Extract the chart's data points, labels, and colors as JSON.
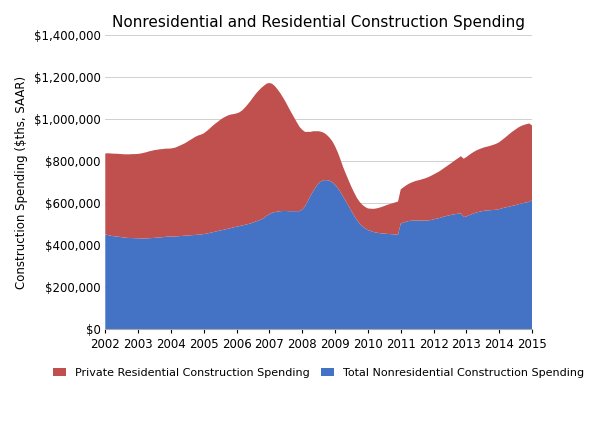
{
  "title": "Nonresidential and Residential Construction Spending",
  "ylabel": "Construction Spending ($ths, SAAR)",
  "nonres_color": "#4472C4",
  "res_color": "#C0504D",
  "background_color": "#FFFFFF",
  "ylim": [
    0,
    1400000
  ],
  "ytick_step": 200000,
  "legend_labels": [
    "Private Residential Construction Spending",
    "Total Nonresidential Construction Spending"
  ],
  "title_fontsize": 11,
  "axis_fontsize": 8.5,
  "legend_fontsize": 8,
  "xtick_years": [
    2002,
    2003,
    2004,
    2005,
    2006,
    2007,
    2008,
    2009,
    2010,
    2011,
    2012,
    2013,
    2014,
    2015
  ],
  "nonresidential": [
    452000,
    448000,
    445000,
    443000,
    441000,
    440000,
    438000,
    436000,
    435000,
    434000,
    434000,
    433000,
    433000,
    432000,
    432000,
    432000,
    433000,
    434000,
    435000,
    436000,
    437000,
    438000,
    440000,
    441000,
    441000,
    441000,
    442000,
    443000,
    444000,
    445000,
    446000,
    447000,
    448000,
    449000,
    450000,
    451000,
    453000,
    455000,
    458000,
    461000,
    464000,
    467000,
    470000,
    473000,
    476000,
    479000,
    482000,
    485000,
    488000,
    491000,
    494000,
    497000,
    500000,
    503000,
    508000,
    513000,
    518000,
    523000,
    530000,
    540000,
    548000,
    554000,
    558000,
    560000,
    562000,
    563000,
    563000,
    562000,
    562000,
    562000,
    562000,
    562000,
    570000,
    585000,
    610000,
    635000,
    658000,
    678000,
    695000,
    705000,
    710000,
    710000,
    707000,
    700000,
    688000,
    672000,
    652000,
    630000,
    608000,
    585000,
    562000,
    540000,
    520000,
    503000,
    490000,
    480000,
    472000,
    468000,
    463000,
    460000,
    458000,
    456000,
    455000,
    454000,
    453000,
    452000,
    451000,
    450000,
    503000,
    508000,
    512000,
    515000,
    517000,
    518000,
    518000,
    517000,
    517000,
    517000,
    518000,
    520000,
    523000,
    526000,
    529000,
    533000,
    537000,
    540000,
    543000,
    546000,
    548000,
    550000,
    552000,
    534000,
    537000,
    543000,
    548000,
    553000,
    557000,
    560000,
    563000,
    565000,
    566000,
    567000,
    568000,
    569000,
    572000,
    576000,
    579000,
    582000,
    585000,
    588000,
    591000,
    595000,
    598000,
    601000,
    604000,
    607000,
    615000,
    620000,
    622000,
    624000,
    625000,
    626000,
    627000,
    628000,
    628000,
    628000,
    628000,
    628000
  ],
  "residential": [
    385000,
    390000,
    392000,
    393000,
    395000,
    395000,
    396000,
    397000,
    398000,
    399000,
    400000,
    401000,
    402000,
    405000,
    408000,
    411000,
    414000,
    416000,
    418000,
    419000,
    420000,
    420000,
    420000,
    419000,
    420000,
    422000,
    425000,
    430000,
    435000,
    440000,
    447000,
    454000,
    461000,
    468000,
    473000,
    476000,
    480000,
    488000,
    496000,
    505000,
    513000,
    520000,
    527000,
    533000,
    537000,
    540000,
    541000,
    540000,
    540000,
    542000,
    548000,
    558000,
    570000,
    583000,
    596000,
    608000,
    618000,
    626000,
    630000,
    630000,
    625000,
    615000,
    600000,
    582000,
    562000,
    540000,
    518000,
    494000,
    470000,
    447000,
    424000,
    402000,
    380000,
    355000,
    330000,
    305000,
    285000,
    265000,
    248000,
    235000,
    225000,
    215000,
    205000,
    195000,
    183000,
    170000,
    155000,
    140000,
    130000,
    122000,
    115000,
    110000,
    105000,
    103000,
    102000,
    102000,
    103000,
    106000,
    110000,
    115000,
    120000,
    126000,
    132000,
    138000,
    143000,
    148000,
    153000,
    158000,
    163000,
    168000,
    173000,
    178000,
    182000,
    186000,
    190000,
    194000,
    198000,
    202000,
    206000,
    210000,
    214000,
    218000,
    222000,
    227000,
    232000,
    238000,
    244000,
    251000,
    258000,
    265000,
    272000,
    278000,
    283000,
    287000,
    291000,
    294000,
    297000,
    299000,
    301000,
    303000,
    305000,
    308000,
    311000,
    315000,
    319000,
    325000,
    332000,
    340000,
    348000,
    355000,
    361000,
    366000,
    370000,
    372000,
    373000,
    373000,
    355000,
    350000,
    348000,
    347000,
    348000,
    350000,
    352000,
    354000,
    355000,
    356000,
    357000,
    358000
  ]
}
